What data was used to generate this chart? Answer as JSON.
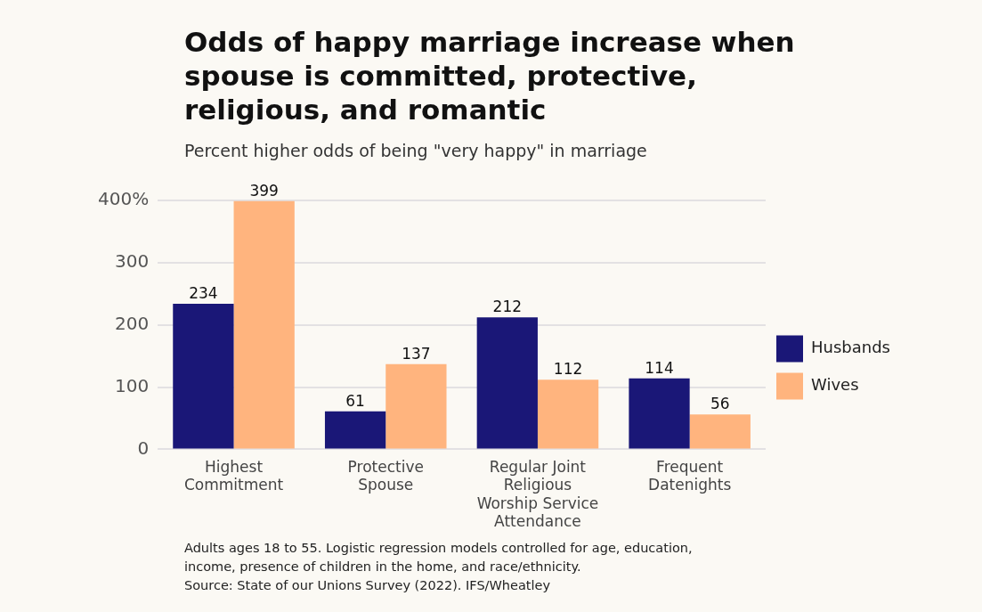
{
  "chart_data": {
    "type": "bar",
    "title": "Odds of happy marriage increase when spouse is committed, protective, religious, and romantic",
    "subtitle": "Percent higher odds of being \"very happy\" in marriage",
    "categories": [
      "Highest Commitment",
      "Protective Spouse",
      "Regular Joint Religious Worship Service Attendance",
      "Frequent Datenights"
    ],
    "series": [
      {
        "name": "Husbands",
        "color": "#1a1777",
        "values": [
          234,
          61,
          212,
          114
        ]
      },
      {
        "name": "Wives",
        "color": "#ffb47e",
        "values": [
          399,
          137,
          112,
          56
        ]
      }
    ],
    "ylim": [
      0,
      400
    ],
    "yticks": [
      0,
      100,
      200,
      300,
      {
        "value": 400,
        "label": "400%"
      }
    ],
    "grid": "y",
    "legend": "right",
    "data_labels": true,
    "annotations": [
      "Adults ages 18 to 55. Logistic regression models controlled for age, education, income, presence of children in the home, and race/ethnicity.",
      "Source: State of our Unions Survey (2022). IFS/Wheatley"
    ]
  }
}
